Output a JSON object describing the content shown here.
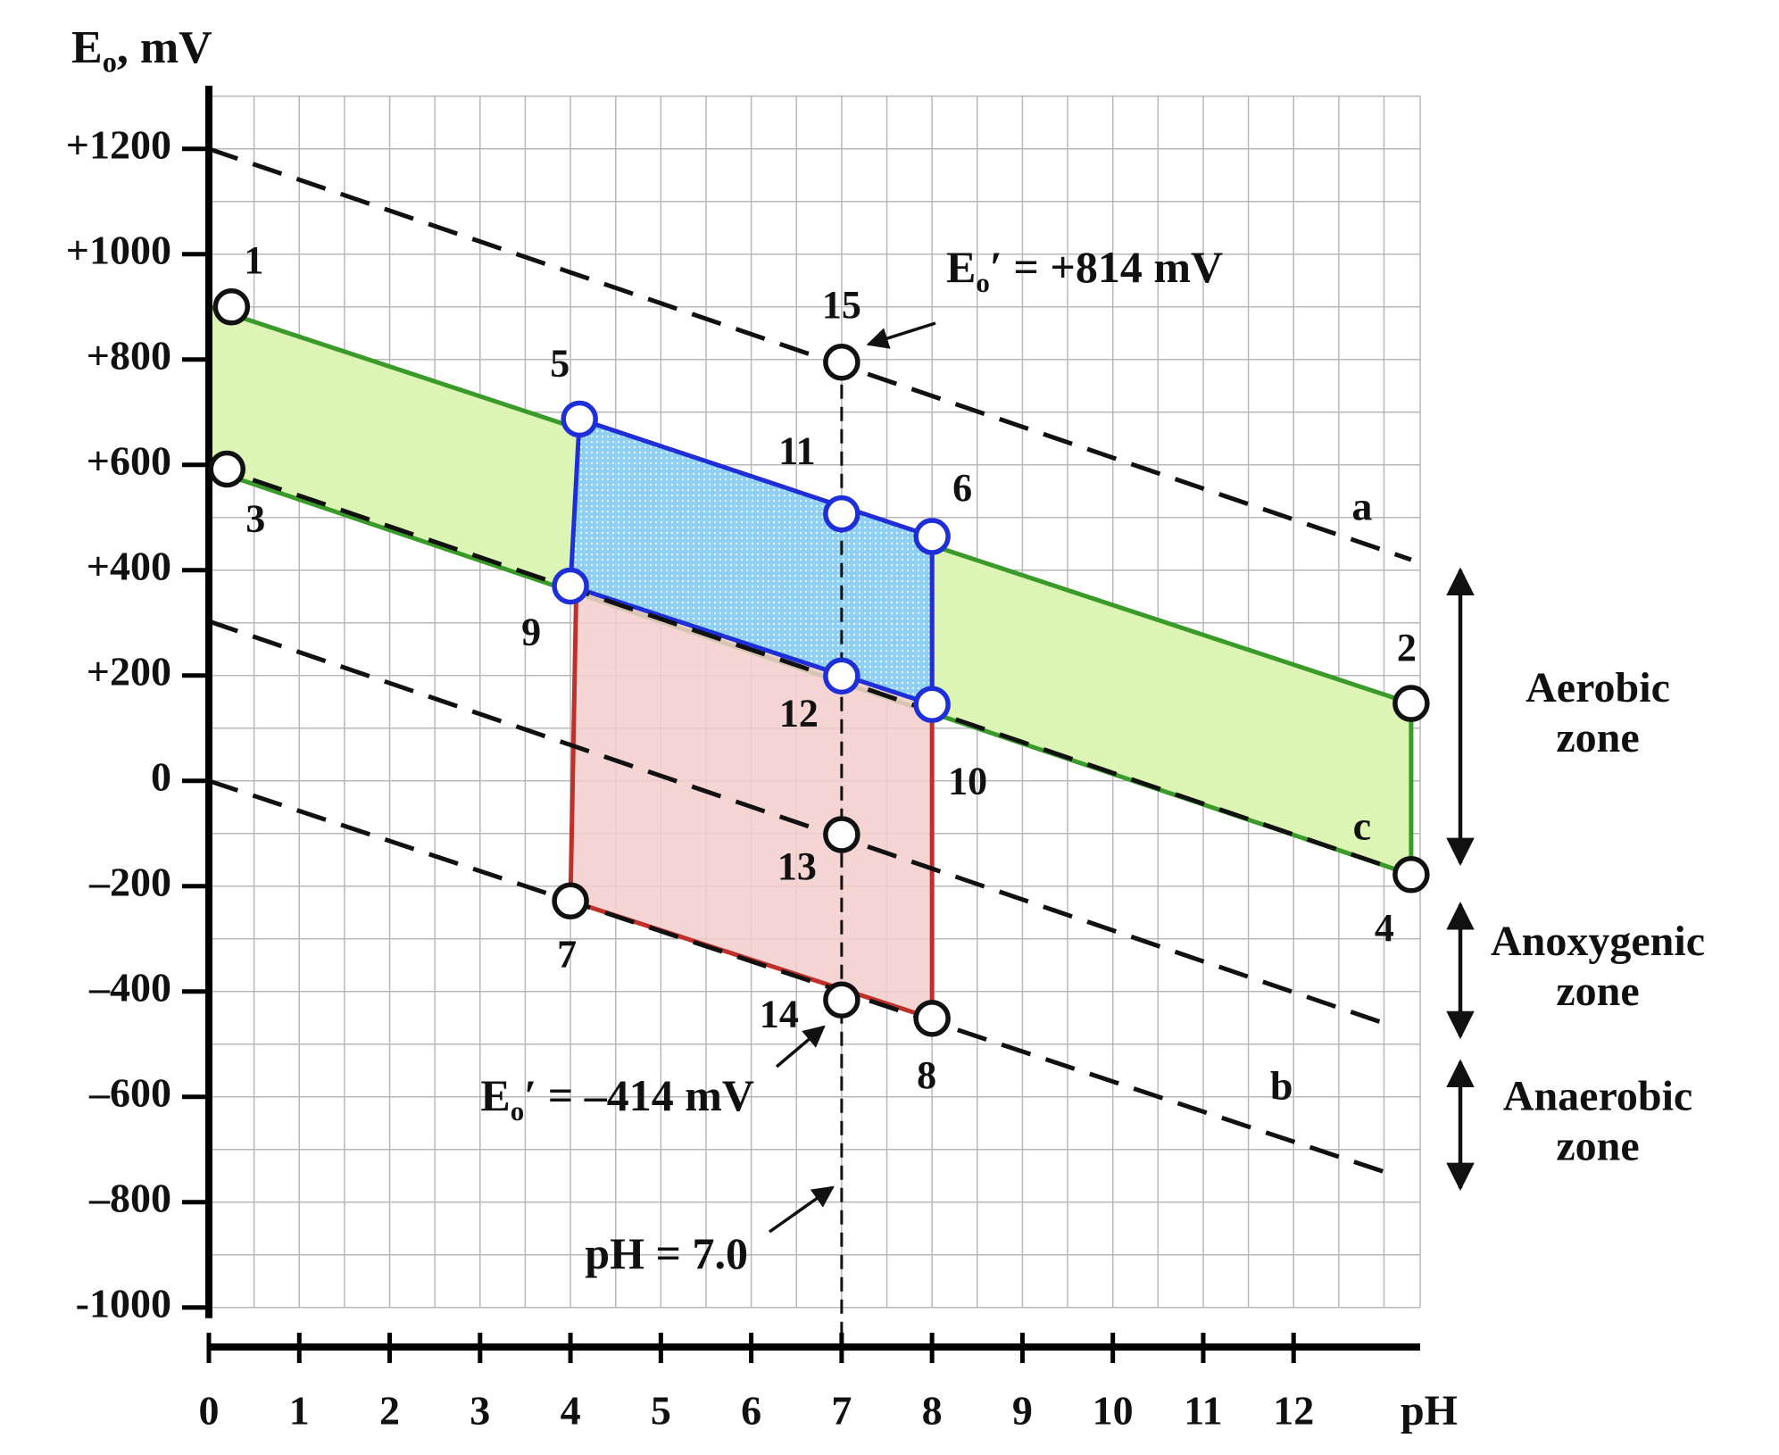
{
  "chart_data": {
    "type": "line",
    "y_axis_title": {
      "main": "E",
      "sub": "o",
      "rest": ", mV"
    },
    "x_axis_title": "pH",
    "xlim": [
      0,
      13.4
    ],
    "ylim": [
      -1075,
      1320
    ],
    "xticks": [
      0,
      1,
      2,
      3,
      4,
      5,
      6,
      7,
      8,
      9,
      10,
      11,
      12
    ],
    "yticks": [
      {
        "value": 1200,
        "label": "+1200"
      },
      {
        "value": 1000,
        "label": "+1000"
      },
      {
        "value": 800,
        "label": "+800"
      },
      {
        "value": 600,
        "label": "+600"
      },
      {
        "value": 400,
        "label": "+400"
      },
      {
        "value": 200,
        "label": "+200"
      },
      0,
      {
        "value": -200,
        "label": "–200"
      },
      {
        "value": -400,
        "label": "–400"
      },
      {
        "value": -600,
        "label": "–600"
      },
      {
        "value": -800,
        "label": "–800"
      },
      -1000
    ],
    "grid": true,
    "xgrid": [
      0.5,
      1,
      1.5,
      2,
      2.5,
      3,
      3.5,
      4,
      4.5,
      5,
      5.5,
      6,
      6.5,
      7,
      7.5,
      8,
      8.5,
      9,
      9.5,
      10,
      10.5,
      11,
      11.5,
      12,
      12.5,
      13,
      13.4
    ],
    "ygrid": [
      -1000,
      -900,
      -800,
      -700,
      -600,
      -500,
      -400,
      -300,
      -200,
      -100,
      0,
      100,
      200,
      300,
      400,
      500,
      600,
      700,
      800,
      900,
      1000,
      1100,
      1200,
      1300
    ],
    "regions": [
      {
        "x": [
          0,
          13.3,
          13.3,
          0
        ],
        "y": [
          900,
          147,
          -178,
          592
        ],
        "fill": "#dcf5b4",
        "stroke": "#3a9a2a"
      },
      {
        "x": [
          4.1,
          8.0,
          8.0,
          4.0
        ],
        "y": [
          687,
          464,
          -451,
          -228
        ],
        "fill": "#f3cccc",
        "stroke": "#c0302a"
      },
      {
        "x": [
          4.1,
          8.0,
          8.0,
          4.0
        ],
        "y": [
          687,
          464,
          145,
          370
        ],
        "fill": "#8ecff2",
        "stroke": "#1f2fd8"
      }
    ],
    "series": [
      {
        "name": "a",
        "color": "#111",
        "x": [
          0,
          13.3
        ],
        "y": [
          1200,
          420
        ]
      },
      {
        "name": null,
        "color": "#111",
        "x": [
          0,
          13.1
        ],
        "y": [
          303,
          -466
        ]
      },
      {
        "name": "b",
        "color": "#111",
        "x": [
          0,
          13.1
        ],
        "y": [
          0,
          -748
        ]
      },
      {
        "name": "c",
        "color": "#111",
        "x": [
          0,
          13.3
        ],
        "y": [
          600,
          -178
        ]
      },
      {
        "name": null,
        "color": "#111",
        "x": [
          7,
          7
        ],
        "y": [
          795,
          -1075
        ]
      }
    ],
    "points": [
      {
        "label": "1",
        "x": 0.25,
        "y": 900,
        "color": "#111"
      },
      {
        "label": "2",
        "x": 13.3,
        "y": 147,
        "color": "#111"
      },
      {
        "label": "3",
        "x": 0.2,
        "y": 592,
        "color": "#111"
      },
      {
        "label": "4",
        "x": 13.3,
        "y": -178,
        "color": "#111"
      },
      {
        "label": "5",
        "x": 4.1,
        "y": 687,
        "color": "#1f2fd8"
      },
      {
        "label": "6",
        "x": 8.0,
        "y": 464,
        "color": "#1f2fd8"
      },
      {
        "label": "7",
        "x": 4.0,
        "y": -228,
        "color": "#111"
      },
      {
        "label": "8",
        "x": 8.0,
        "y": -451,
        "color": "#111"
      },
      {
        "label": "9",
        "x": 4.0,
        "y": 370,
        "color": "#1f2fd8"
      },
      {
        "label": "10",
        "x": 8.0,
        "y": 145,
        "color": "#1f2fd8"
      },
      {
        "label": "11",
        "x": 7.0,
        "y": 507,
        "color": "#1f2fd8"
      },
      {
        "label": "12",
        "x": 7.0,
        "y": 199,
        "color": "#1f2fd8"
      },
      {
        "label": "13",
        "x": 7.0,
        "y": -102,
        "color": "#111"
      },
      {
        "label": "14",
        "x": 7.0,
        "y": -416,
        "color": "#111"
      },
      {
        "label": "15",
        "x": 7.0,
        "y": 795,
        "color": "#111"
      }
    ],
    "annotations": [
      {
        "main": "E",
        "sub": "o",
        "rest": "′ = +814 mV"
      },
      {
        "main": "E",
        "sub": "o",
        "rest": "′ = –414 mV"
      },
      {
        "main": "pH = 7.0"
      }
    ],
    "zones": [
      {
        "lines": [
          "Aerobic",
          "zone"
        ],
        "range": [
          407,
          -163
        ]
      },
      {
        "lines": [
          "Anoxygenic",
          "zone"
        ],
        "range": [
          -228,
          -492
        ]
      },
      {
        "lines": [
          "Anaerobic",
          "zone"
        ],
        "range": [
          -527,
          -780
        ]
      }
    ]
  }
}
